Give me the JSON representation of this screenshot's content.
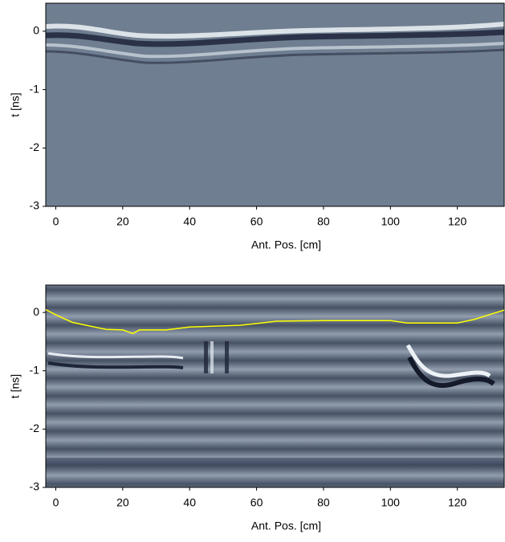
{
  "chart_data": [
    {
      "type": "radargram",
      "xlabel": "Ant. Pos. [cm]",
      "ylabel": "t [ns]",
      "xlim": [
        -3,
        134
      ],
      "xticks": [
        0,
        20,
        40,
        60,
        80,
        100,
        120
      ],
      "ylim": [
        -3,
        0.48
      ],
      "yticks": [
        0,
        -1,
        -2,
        -3
      ]
    },
    {
      "type": "radargram",
      "xlabel": "Ant. Pos. [cm]",
      "ylabel": "t [ns]",
      "xlim": [
        -3,
        134
      ],
      "xticks": [
        0,
        20,
        40,
        60,
        80,
        100,
        120
      ],
      "ylim": [
        -3,
        0.47
      ],
      "yticks": [
        0,
        -1,
        -2,
        -3
      ],
      "color": "#ffff00",
      "x": [
        -3,
        0,
        5,
        15,
        20,
        23,
        25,
        33,
        40,
        55,
        60,
        66,
        80,
        100,
        105,
        120,
        125,
        130,
        134
      ],
      "values": [
        0.05,
        -0.04,
        -0.17,
        -0.29,
        -0.3,
        -0.36,
        -0.3,
        -0.3,
        -0.25,
        -0.22,
        -0.19,
        -0.15,
        -0.14,
        -0.14,
        -0.18,
        -0.18,
        -0.12,
        -0.03,
        0.04
      ]
    }
  ]
}
